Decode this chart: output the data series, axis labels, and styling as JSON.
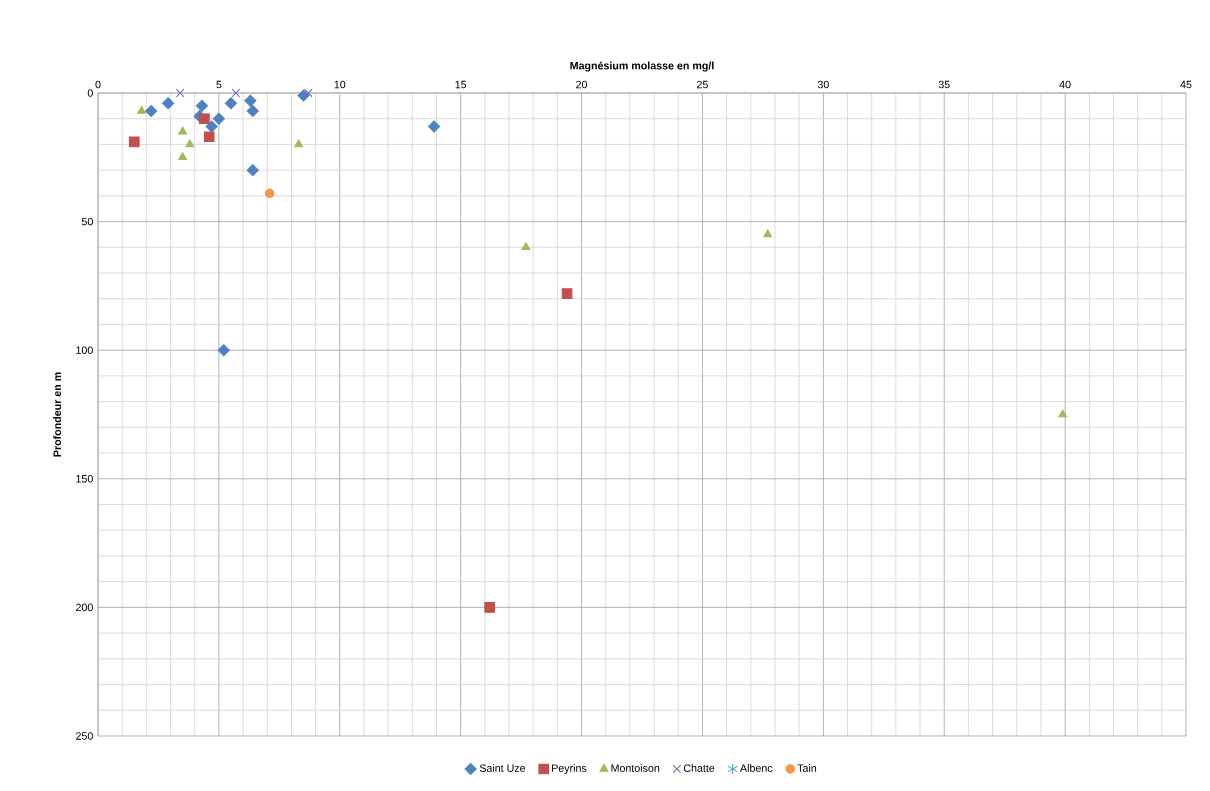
{
  "chart_data": {
    "type": "scatter",
    "xlabel": "Magnésium molasse en mg/l",
    "ylabel": "Profondeur en m",
    "xlim": [
      0,
      45
    ],
    "xticks": [
      0,
      5,
      10,
      15,
      20,
      25,
      30,
      35,
      40,
      45
    ],
    "ylim": [
      250,
      0
    ],
    "yticks": [
      0,
      50,
      100,
      150,
      200,
      250
    ],
    "grid": true,
    "legend": "bottom",
    "series": [
      {
        "name": "Saint Uze",
        "color": "#4f81bd",
        "marker": "diamond",
        "x": [
          2.2,
          2.9,
          4.3,
          4.2,
          4.7,
          5.0,
          5.5,
          6.3,
          6.4,
          6.4,
          8.5,
          13.9,
          5.2
        ],
        "values": [
          7,
          4,
          5,
          9,
          13,
          10,
          4,
          3,
          7,
          30,
          1,
          13,
          100
        ]
      },
      {
        "name": "Peyrins",
        "color": "#c0504d",
        "marker": "square",
        "x": [
          1.5,
          4.4,
          4.6,
          19.4,
          16.2
        ],
        "values": [
          19,
          10,
          17,
          78,
          200
        ]
      },
      {
        "name": "Montoison",
        "color": "#9bbb59",
        "marker": "triangle",
        "x": [
          1.8,
          3.5,
          3.8,
          3.5,
          8.3,
          17.7,
          27.7,
          39.9
        ],
        "values": [
          7,
          15,
          20,
          25,
          20,
          60,
          55,
          125
        ]
      },
      {
        "name": "Chatte",
        "color": "#8064a2",
        "marker": "cross",
        "x": [
          3.4,
          5.7,
          8.7
        ],
        "values": [
          0,
          0,
          0
        ]
      },
      {
        "name": "Albenc",
        "color": "#4bacc6",
        "marker": "star"
      },
      {
        "name": "Tain",
        "color": "#f79646",
        "marker": "circle",
        "x": [
          7.1
        ],
        "values": [
          39
        ]
      }
    ]
  }
}
